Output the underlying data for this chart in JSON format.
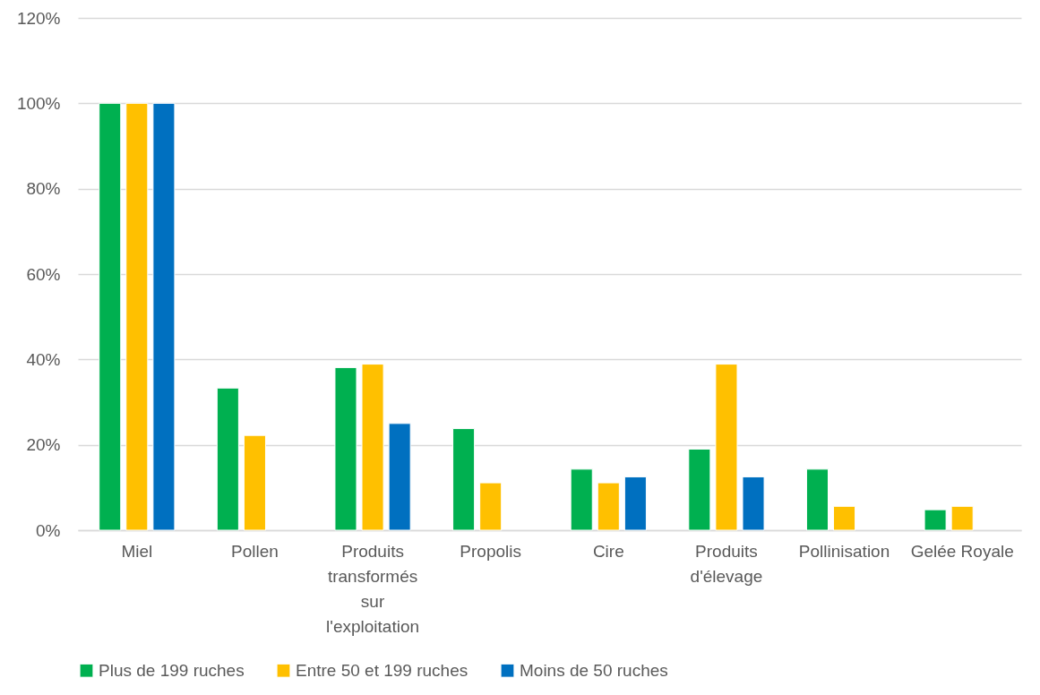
{
  "chart_data": {
    "type": "bar",
    "categories": [
      "Miel",
      "Pollen",
      "Produits\ntransformés\nsur\nl'exploitation",
      "Propolis",
      "Cire",
      "Produits\nd'élevage",
      "Pollinisation",
      "Gelée Royale"
    ],
    "series": [
      {
        "name": "Plus de 199 ruches",
        "color": "#00b050",
        "values": [
          100,
          33.3,
          38.1,
          23.8,
          14.3,
          19.0,
          14.3,
          4.8
        ]
      },
      {
        "name": "Entre 50 et 199 ruches",
        "color": "#ffc000",
        "values": [
          100,
          22.2,
          38.9,
          11.1,
          11.1,
          38.9,
          5.6,
          5.6
        ]
      },
      {
        "name": "Moins de 50 ruches",
        "color": "#0070c0",
        "values": [
          100,
          null,
          25,
          null,
          12.5,
          12.5,
          null,
          null
        ]
      }
    ],
    "ylim": [
      0,
      120
    ],
    "yticks": [
      {
        "value": 0,
        "label": "0%"
      },
      {
        "value": 20,
        "label": "20%"
      },
      {
        "value": 40,
        "label": "40%"
      },
      {
        "value": 60,
        "label": "60%"
      },
      {
        "value": 80,
        "label": "80%"
      },
      {
        "value": 100,
        "label": "100%"
      },
      {
        "value": 120,
        "label": "120%"
      }
    ],
    "grid": "y",
    "legend": "bottom"
  }
}
